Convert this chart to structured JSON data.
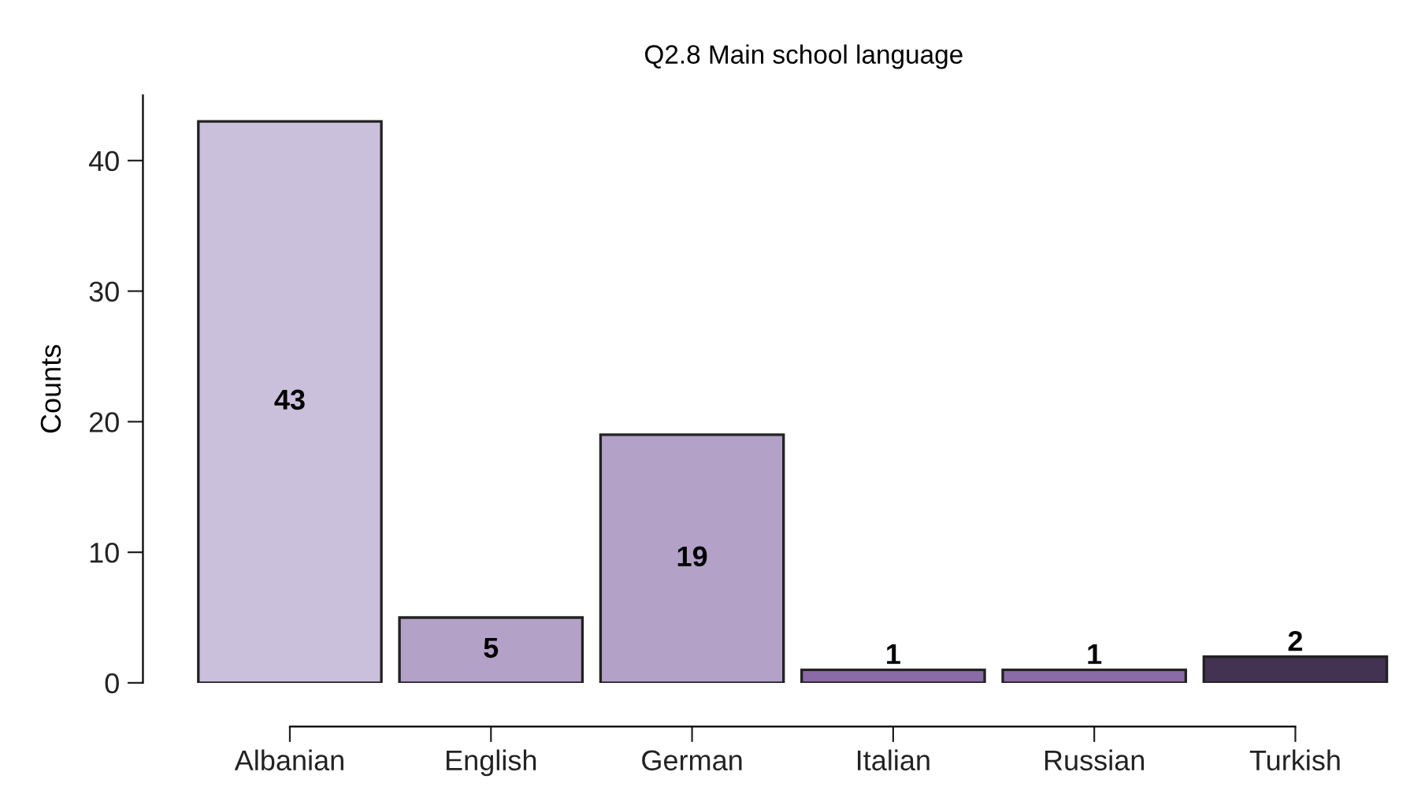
{
  "chart_data": {
    "type": "bar",
    "title": "Q2.8 Main school language",
    "ylabel": "Counts",
    "categories": [
      "Albanian",
      "English",
      "German",
      "Italian",
      "Russian",
      "Turkish"
    ],
    "values": [
      43,
      5,
      19,
      1,
      1,
      2
    ],
    "colors": [
      "#cbc0db",
      "#b3a1c7",
      "#b3a1c7",
      "#8a6aa7",
      "#8a6aa7",
      "#433252"
    ],
    "ylim": [
      0,
      45
    ],
    "yticks": [
      0,
      10,
      20,
      30,
      40
    ],
    "data_labels": true,
    "grid": false,
    "legend": false
  }
}
